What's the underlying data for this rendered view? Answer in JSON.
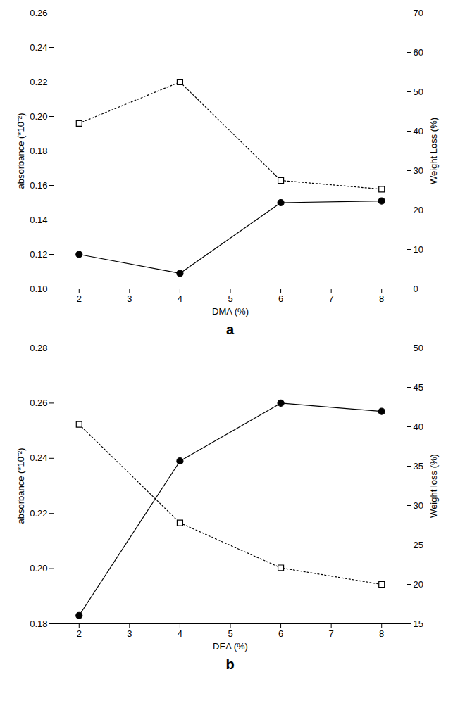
{
  "chart_data": [
    {
      "type": "line",
      "title": "a",
      "xlabel": "DMA (%)",
      "ylabel": "absorbance (*10⁻²)",
      "y2label": "Weight Loss (%)",
      "x": [
        2,
        4,
        6,
        8
      ],
      "series": [
        {
          "name": "absorbance",
          "color": "#000000",
          "marker": "circle",
          "line_style": "solid",
          "values": [
            0.12,
            0.109,
            0.15,
            0.151
          ]
        },
        {
          "name": "Weight Loss",
          "color": "#000000",
          "marker": "open square",
          "line_style": "dotted",
          "axis": "y2",
          "values": [
            42.0,
            52.5,
            27.5,
            25.3
          ]
        }
      ],
      "xlim": [
        1.5,
        8.5
      ],
      "xticks": [
        2,
        3,
        4,
        5,
        6,
        7,
        8
      ],
      "ylim": [
        0.1,
        0.26
      ],
      "yticks": [
        {
          "value": 0.1,
          "label": "0.10"
        },
        {
          "value": 0.12,
          "label": "0.12"
        },
        {
          "value": 0.14,
          "label": "0.14"
        },
        {
          "value": 0.16,
          "label": "0.16"
        },
        {
          "value": 0.18,
          "label": "0.18"
        },
        {
          "value": 0.2,
          "label": "0.20"
        },
        {
          "value": 0.22,
          "label": "0.22"
        },
        {
          "value": 0.24,
          "label": "0.24"
        },
        {
          "value": 0.26,
          "label": "0.26"
        }
      ],
      "y2lim": [
        0,
        70
      ],
      "y2ticks": [
        0,
        10,
        20,
        30,
        40,
        50,
        60,
        70
      ],
      "grid": false
    },
    {
      "type": "line",
      "title": "b",
      "xlabel": "DEA (%)",
      "ylabel": "absorbance (*10⁻²)",
      "y2label": "Weight loss (%)",
      "x": [
        2,
        4,
        6,
        8
      ],
      "series": [
        {
          "name": "absorbance",
          "color": "#000000",
          "marker": "circle",
          "line_style": "solid",
          "values": [
            0.183,
            0.239,
            0.26,
            0.257
          ]
        },
        {
          "name": "Weight loss",
          "color": "#000000",
          "marker": "open square",
          "line_style": "dotted",
          "axis": "y2",
          "values": [
            40.3,
            27.8,
            22.1,
            20.0
          ]
        }
      ],
      "xlim": [
        1.5,
        8.5
      ],
      "xticks": [
        2,
        3,
        4,
        5,
        6,
        7,
        8
      ],
      "ylim": [
        0.18,
        0.28
      ],
      "yticks": [
        {
          "value": 0.18,
          "label": "0.18"
        },
        {
          "value": 0.2,
          "label": "0.20"
        },
        {
          "value": 0.22,
          "label": "0.22"
        },
        {
          "value": 0.24,
          "label": "0.24"
        },
        {
          "value": 0.26,
          "label": "0.26"
        },
        {
          "value": 0.28,
          "label": "0.28"
        }
      ],
      "y2lim": [
        15,
        50
      ],
      "y2ticks": [
        15,
        20,
        25,
        30,
        35,
        40,
        45,
        50
      ],
      "grid": false
    }
  ]
}
